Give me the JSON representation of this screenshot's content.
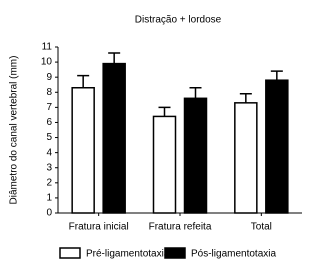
{
  "chart_data": {
    "type": "bar",
    "title": "Distração + lordose",
    "ylabel": "Diâmetro do canal vertebral (mm)",
    "categories": [
      "Fratura inicial",
      "Fratura refeita",
      "Total"
    ],
    "series": [
      {
        "name": "Pré-ligamentotaxia",
        "color": "#ffffff",
        "values": [
          8.3,
          6.4,
          7.3
        ],
        "errors": [
          0.8,
          0.6,
          0.6
        ]
      },
      {
        "name": "Pós-ligamentotaxia",
        "color": "#000000",
        "values": [
          9.9,
          7.6,
          8.8
        ],
        "errors": [
          0.7,
          0.7,
          0.6
        ]
      }
    ],
    "edgecolor": "#000000",
    "ylim": [
      0,
      11
    ],
    "yticks": [
      0,
      1,
      2,
      3,
      4,
      5,
      6,
      7,
      8,
      9,
      10,
      11
    ],
    "grid": false,
    "legend": "bottom"
  }
}
